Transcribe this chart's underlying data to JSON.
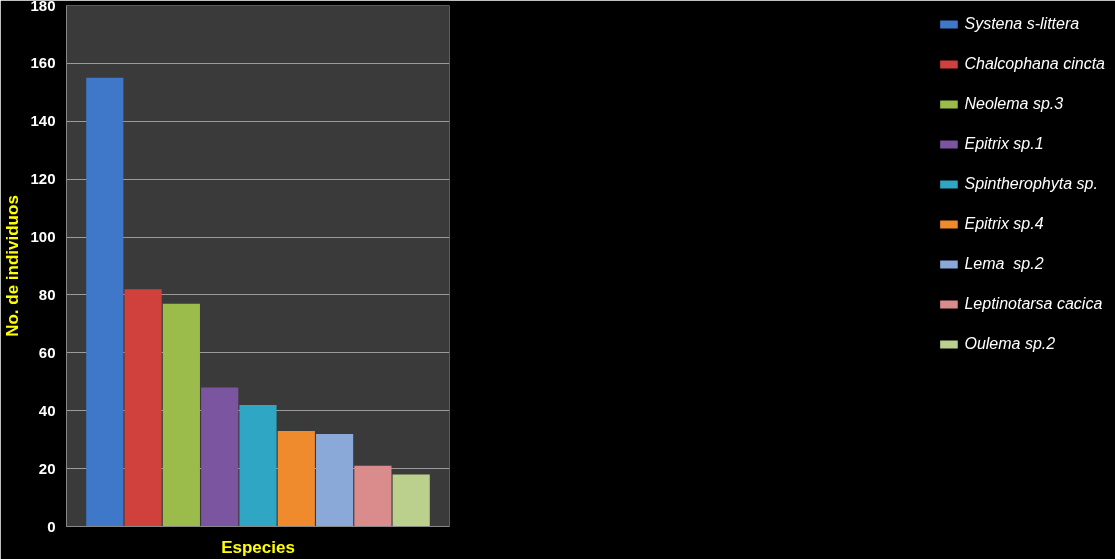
{
  "chart_data": {
    "type": "bar",
    "xlabel": "Especies",
    "ylabel": "No. de individuos",
    "categories": [
      null
    ],
    "series": [
      {
        "name": "Systena s-littera",
        "color": "#3f78c8",
        "values": [
          155
        ]
      },
      {
        "name": "Chalcophana cincta",
        "color": "#d0403c",
        "values": [
          82
        ]
      },
      {
        "name": "Neolema sp.3",
        "color": "#9bbb4a",
        "values": [
          77
        ]
      },
      {
        "name": "Epitrix sp.1",
        "color": "#7b55a0",
        "values": [
          48
        ]
      },
      {
        "name": "Spintherophyta sp.",
        "color": "#2fa7c4",
        "values": [
          42
        ]
      },
      {
        "name": "Epitrix sp.4",
        "color": "#ef8b2c",
        "values": [
          33
        ]
      },
      {
        "name": "Lema  sp.2",
        "color": "#8aa8d8",
        "values": [
          32
        ]
      },
      {
        "name": "Leptinotarsa cacica",
        "color": "#d98c8b",
        "values": [
          21
        ]
      },
      {
        "name": "Oulema sp.2",
        "color": "#bcd08e",
        "values": [
          18
        ]
      }
    ],
    "ylim": [
      0,
      180
    ],
    "yticks": [
      0,
      20,
      40,
      60,
      80,
      100,
      120,
      140,
      160,
      180
    ],
    "grid": "y",
    "legend": "right",
    "tick_labels": "y"
  }
}
